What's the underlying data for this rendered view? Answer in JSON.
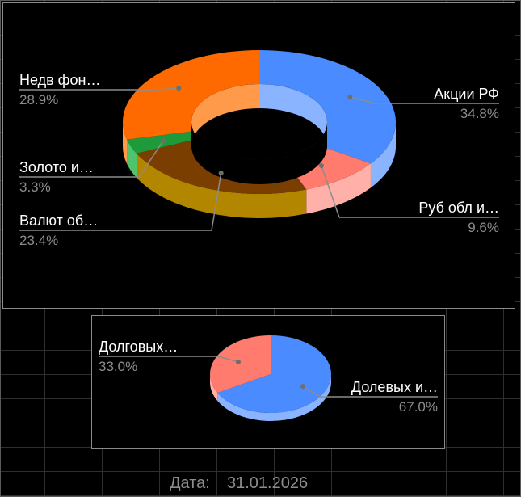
{
  "chart_data": [
    {
      "type": "pie",
      "style": "3d-donut",
      "slices": [
        {
          "label": "Акции РФ",
          "percent_text": "34.8%",
          "value": 34.8,
          "color": "#4a8cff",
          "side_color": "#8ab4ff"
        },
        {
          "label": "Руб обл и…",
          "percent_text": "9.6%",
          "value": 9.6,
          "color": "#ff7b6e",
          "side_color": "#ffb0a8"
        },
        {
          "label": "Валют об…",
          "percent_text": "23.4%",
          "value": 23.4,
          "color": "#7a3e00",
          "side_color": "#b38600"
        },
        {
          "label": "Золото и…",
          "percent_text": "3.3%",
          "value": 3.3,
          "color": "#1f9a3a",
          "side_color": "#4fc46a"
        },
        {
          "label": "Недв фон…",
          "percent_text": "28.9%",
          "value": 28.9,
          "color": "#ff6a00",
          "side_color": "#ff9a4a"
        }
      ]
    },
    {
      "type": "pie",
      "style": "3d-pie",
      "slices": [
        {
          "label": "Долевых и…",
          "percent_text": "67.0%",
          "value": 67.0,
          "color": "#4a8cff",
          "side_color": "#8ab4ff"
        },
        {
          "label": "Долговых…",
          "percent_text": "33.0%",
          "value": 33.0,
          "color": "#ff7b6e",
          "side_color": "#ffb0a8"
        }
      ]
    }
  ],
  "footer": {
    "date_label": "Дата:",
    "date_value": "31.01.2026"
  }
}
